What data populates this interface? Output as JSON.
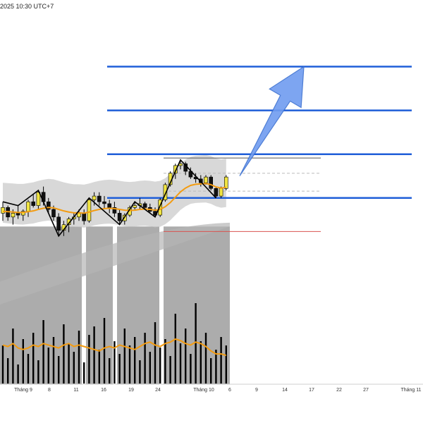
{
  "header": {
    "timestamp": "2025 10:30 UTC+7"
  },
  "colors": {
    "level_line": "#1f5ed8",
    "arrow": "#6f9cf0",
    "ma_line": "#f39c12",
    "candle_up": "#f0e442",
    "candle_down": "#111111",
    "zigzag": "#000000",
    "cloud": "#c8c8c8",
    "volume_band": "#9e9e9e",
    "red_line": "#d9534f"
  },
  "chart_data": {
    "type": "candlestick",
    "x_tick_labels": [
      "Tháng 9",
      "8",
      "11",
      "16",
      "19",
      "24",
      "Tháng 10",
      "6",
      "9",
      "14",
      "17",
      "22",
      "27",
      "Tháng 11"
    ],
    "price_range": [
      0,
      100
    ],
    "horizontal_levels": [
      {
        "name": "level-1",
        "y": 82.5
      },
      {
        "name": "level-2",
        "y": 71
      },
      {
        "name": "level-3",
        "y": 59.5
      },
      {
        "name": "level-4",
        "y": 48
      }
    ],
    "candles": [
      {
        "o": 44,
        "h": 47,
        "l": 42,
        "c": 45.5
      },
      {
        "o": 45.5,
        "h": 46,
        "l": 42,
        "c": 43
      },
      {
        "o": 43,
        "h": 45,
        "l": 41,
        "c": 44
      },
      {
        "o": 44,
        "h": 46,
        "l": 42.5,
        "c": 43.5
      },
      {
        "o": 43.5,
        "h": 45,
        "l": 42,
        "c": 44.5
      },
      {
        "o": 44.5,
        "h": 47.5,
        "l": 43,
        "c": 47
      },
      {
        "o": 47,
        "h": 49,
        "l": 45.5,
        "c": 46
      },
      {
        "o": 46,
        "h": 50,
        "l": 45,
        "c": 49.5
      },
      {
        "o": 49.5,
        "h": 51,
        "l": 46,
        "c": 47
      },
      {
        "o": 47,
        "h": 48,
        "l": 44,
        "c": 45
      },
      {
        "o": 45,
        "h": 46,
        "l": 42,
        "c": 43
      },
      {
        "o": 43,
        "h": 44,
        "l": 38,
        "c": 39.5
      },
      {
        "o": 39.5,
        "h": 42,
        "l": 38,
        "c": 41
      },
      {
        "o": 41,
        "h": 43,
        "l": 39,
        "c": 42.5
      },
      {
        "o": 42.5,
        "h": 44,
        "l": 41,
        "c": 43
      },
      {
        "o": 43,
        "h": 45,
        "l": 42,
        "c": 44
      },
      {
        "o": 44,
        "h": 45,
        "l": 41,
        "c": 42
      },
      {
        "o": 42,
        "h": 48,
        "l": 41.5,
        "c": 47.5
      },
      {
        "o": 47.5,
        "h": 49.5,
        "l": 46,
        "c": 48.5
      },
      {
        "o": 48.5,
        "h": 49.5,
        "l": 46,
        "c": 47
      },
      {
        "o": 47,
        "h": 48.5,
        "l": 45,
        "c": 46.5
      },
      {
        "o": 46.5,
        "h": 47.5,
        "l": 44,
        "c": 45.5
      },
      {
        "o": 45.5,
        "h": 47,
        "l": 43,
        "c": 44
      },
      {
        "o": 44,
        "h": 45,
        "l": 41,
        "c": 42
      },
      {
        "o": 42,
        "h": 44,
        "l": 41,
        "c": 43.5
      },
      {
        "o": 43.5,
        "h": 46,
        "l": 43,
        "c": 45.5
      },
      {
        "o": 45.5,
        "h": 47,
        "l": 45,
        "c": 46
      },
      {
        "o": 46,
        "h": 48,
        "l": 45,
        "c": 46.5
      },
      {
        "o": 46.5,
        "h": 47,
        "l": 45,
        "c": 45.5
      },
      {
        "o": 45.5,
        "h": 46.5,
        "l": 44,
        "c": 44.5
      },
      {
        "o": 44.5,
        "h": 45.5,
        "l": 43,
        "c": 43.5
      },
      {
        "o": 43.5,
        "h": 48,
        "l": 43,
        "c": 47.5
      },
      {
        "o": 47.5,
        "h": 52,
        "l": 47,
        "c": 51.5
      },
      {
        "o": 51.5,
        "h": 55,
        "l": 51,
        "c": 54.5
      },
      {
        "o": 54.5,
        "h": 57,
        "l": 53,
        "c": 56.5
      },
      {
        "o": 56.5,
        "h": 58,
        "l": 55.5,
        "c": 57
      },
      {
        "o": 57,
        "h": 57.5,
        "l": 54,
        "c": 55
      },
      {
        "o": 55,
        "h": 56,
        "l": 53,
        "c": 53.5
      },
      {
        "o": 53.5,
        "h": 54.5,
        "l": 52,
        "c": 53
      },
      {
        "o": 53,
        "h": 54,
        "l": 51,
        "c": 52
      },
      {
        "o": 52,
        "h": 54,
        "l": 51.5,
        "c": 53.5
      },
      {
        "o": 53.5,
        "h": 54,
        "l": 50,
        "c": 50.5
      },
      {
        "o": 50.5,
        "h": 51,
        "l": 48,
        "c": 48.5
      },
      {
        "o": 48.5,
        "h": 51,
        "l": 48,
        "c": 50.5
      },
      {
        "o": 50.5,
        "h": 54,
        "l": 50,
        "c": 53.5
      }
    ],
    "ma": [
      44.5,
      44.4,
      44.3,
      44.2,
      44.2,
      44.4,
      44.6,
      45.0,
      45.3,
      45.5,
      45.4,
      45.0,
      44.6,
      44.3,
      44.1,
      44.1,
      44.0,
      44.3,
      44.7,
      45.0,
      45.2,
      45.3,
      45.2,
      45.0,
      44.8,
      44.7,
      44.8,
      45.0,
      45.1,
      45.0,
      44.8,
      45.0,
      45.7,
      46.8,
      48.2,
      49.6,
      50.6,
      51.3,
      51.6,
      51.7,
      51.8,
      51.5,
      50.9,
      50.6,
      50.8
    ],
    "volume": [
      18,
      12,
      26,
      9,
      21,
      14,
      24,
      11,
      30,
      17,
      22,
      13,
      28,
      19,
      15,
      25,
      10,
      23,
      27,
      16,
      31,
      12,
      20,
      14,
      26,
      18,
      22,
      11,
      24,
      15,
      29,
      17,
      21,
      13,
      33,
      19,
      26,
      14,
      38,
      20,
      24,
      12,
      16,
      22,
      18
    ],
    "volume_ma": [
      26,
      25,
      27,
      24,
      23,
      24,
      26,
      25,
      27,
      26,
      25,
      24,
      26,
      27,
      25,
      26,
      25,
      24,
      23,
      22,
      24,
      25,
      24,
      26,
      25,
      24,
      23,
      25,
      27,
      28,
      26,
      25,
      27,
      28,
      30,
      29,
      27,
      26,
      28,
      27,
      25,
      22,
      20,
      20,
      19
    ]
  }
}
